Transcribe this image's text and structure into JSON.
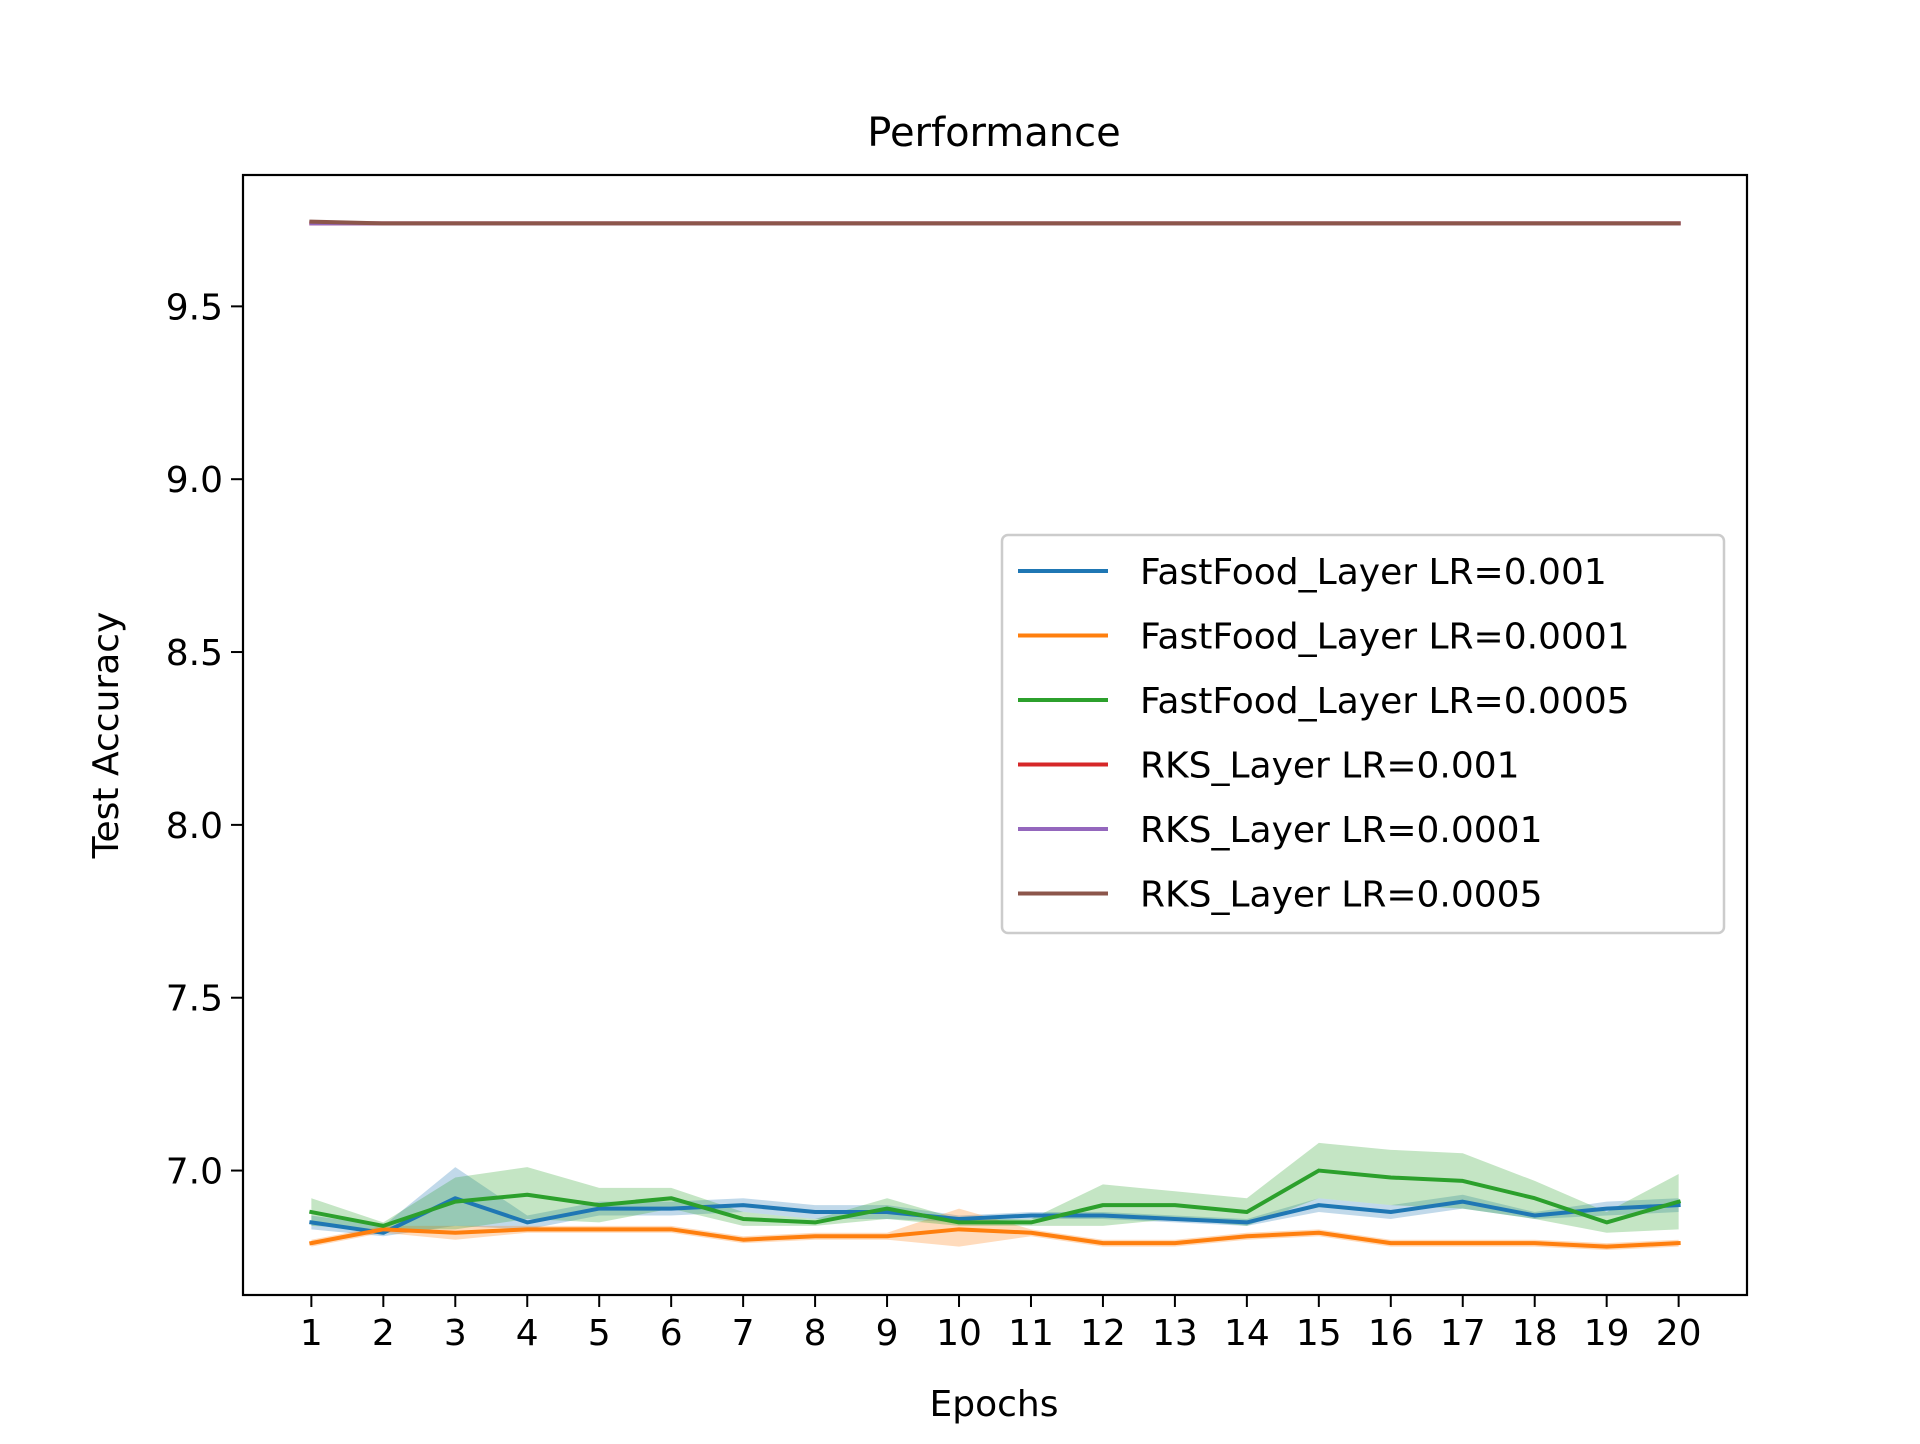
{
  "chart_data": {
    "type": "line",
    "title": "Performance",
    "xlabel": "Epochs",
    "ylabel": "Test Accuracy",
    "xlim": [
      0.05,
      20.95
    ],
    "ylim": [
      6.64,
      9.88
    ],
    "x_ticks": [
      1,
      2,
      3,
      4,
      5,
      6,
      7,
      8,
      9,
      10,
      11,
      12,
      13,
      14,
      15,
      16,
      17,
      18,
      19,
      20
    ],
    "y_ticks": [
      7.0,
      7.5,
      8.0,
      8.5,
      9.0,
      9.5
    ],
    "y_tick_labels": [
      "7.0",
      "7.5",
      "8.0",
      "8.5",
      "9.0",
      "9.5"
    ],
    "grid": false,
    "legend_position": "center-right",
    "x": [
      1,
      2,
      3,
      4,
      5,
      6,
      7,
      8,
      9,
      10,
      11,
      12,
      13,
      14,
      15,
      16,
      17,
      18,
      19,
      20
    ],
    "series": [
      {
        "name": "FastFood_Layer LR=0.001",
        "color": "#1f77b4",
        "values": [
          6.85,
          6.82,
          6.92,
          6.85,
          6.89,
          6.89,
          6.9,
          6.88,
          6.88,
          6.86,
          6.87,
          6.87,
          6.86,
          6.85,
          6.9,
          6.88,
          6.91,
          6.87,
          6.89,
          6.9
        ],
        "lower": [
          6.83,
          6.81,
          6.84,
          6.83,
          6.87,
          6.87,
          6.88,
          6.86,
          6.86,
          6.85,
          6.86,
          6.86,
          6.85,
          6.84,
          6.88,
          6.86,
          6.89,
          6.86,
          6.87,
          6.88
        ],
        "upper": [
          6.87,
          6.84,
          7.01,
          6.87,
          6.91,
          6.91,
          6.92,
          6.9,
          6.9,
          6.87,
          6.88,
          6.88,
          6.87,
          6.86,
          6.92,
          6.9,
          6.93,
          6.88,
          6.91,
          6.92
        ]
      },
      {
        "name": "FastFood_Layer LR=0.0001",
        "color": "#ff7f0e",
        "values": [
          6.79,
          6.83,
          6.82,
          6.83,
          6.83,
          6.83,
          6.8,
          6.81,
          6.81,
          6.83,
          6.82,
          6.79,
          6.79,
          6.81,
          6.82,
          6.79,
          6.79,
          6.79,
          6.78,
          6.79
        ],
        "lower": [
          6.78,
          6.82,
          6.8,
          6.82,
          6.82,
          6.82,
          6.79,
          6.8,
          6.8,
          6.78,
          6.81,
          6.78,
          6.78,
          6.8,
          6.81,
          6.78,
          6.78,
          6.78,
          6.77,
          6.78
        ],
        "upper": [
          6.8,
          6.84,
          6.84,
          6.84,
          6.84,
          6.84,
          6.81,
          6.82,
          6.82,
          6.89,
          6.83,
          6.8,
          6.8,
          6.82,
          6.83,
          6.8,
          6.8,
          6.8,
          6.79,
          6.8
        ]
      },
      {
        "name": "FastFood_Layer LR=0.0005",
        "color": "#2ca02c",
        "values": [
          6.88,
          6.84,
          6.91,
          6.93,
          6.9,
          6.92,
          6.86,
          6.85,
          6.89,
          6.85,
          6.85,
          6.9,
          6.9,
          6.88,
          7.0,
          6.98,
          6.97,
          6.92,
          6.85,
          6.91
        ],
        "lower": [
          6.84,
          6.83,
          6.83,
          6.86,
          6.85,
          6.89,
          6.84,
          6.84,
          6.86,
          6.84,
          6.84,
          6.84,
          6.86,
          6.84,
          6.92,
          6.9,
          6.89,
          6.86,
          6.82,
          6.83
        ],
        "upper": [
          6.92,
          6.85,
          6.98,
          7.01,
          6.95,
          6.95,
          6.88,
          6.86,
          6.92,
          6.86,
          6.86,
          6.96,
          6.94,
          6.92,
          7.08,
          7.06,
          7.05,
          6.97,
          6.88,
          6.99
        ]
      },
      {
        "name": "RKS_Layer LR=0.001",
        "color": "#d62728",
        "values": [
          9.74,
          9.74,
          9.74,
          9.74,
          9.74,
          9.74,
          9.74,
          9.74,
          9.74,
          9.74,
          9.74,
          9.74,
          9.74,
          9.74,
          9.74,
          9.74,
          9.74,
          9.74,
          9.74,
          9.74
        ]
      },
      {
        "name": "RKS_Layer LR=0.0001",
        "color": "#9467bd",
        "values": [
          9.74,
          9.74,
          9.74,
          9.74,
          9.74,
          9.74,
          9.74,
          9.74,
          9.74,
          9.74,
          9.74,
          9.74,
          9.74,
          9.74,
          9.74,
          9.74,
          9.74,
          9.74,
          9.74,
          9.74
        ]
      },
      {
        "name": "RKS_Layer LR=0.0005",
        "color": "#8c564b",
        "values": [
          9.745,
          9.74,
          9.74,
          9.74,
          9.74,
          9.74,
          9.74,
          9.74,
          9.74,
          9.74,
          9.74,
          9.74,
          9.74,
          9.74,
          9.74,
          9.74,
          9.74,
          9.74,
          9.74,
          9.74
        ]
      }
    ]
  }
}
